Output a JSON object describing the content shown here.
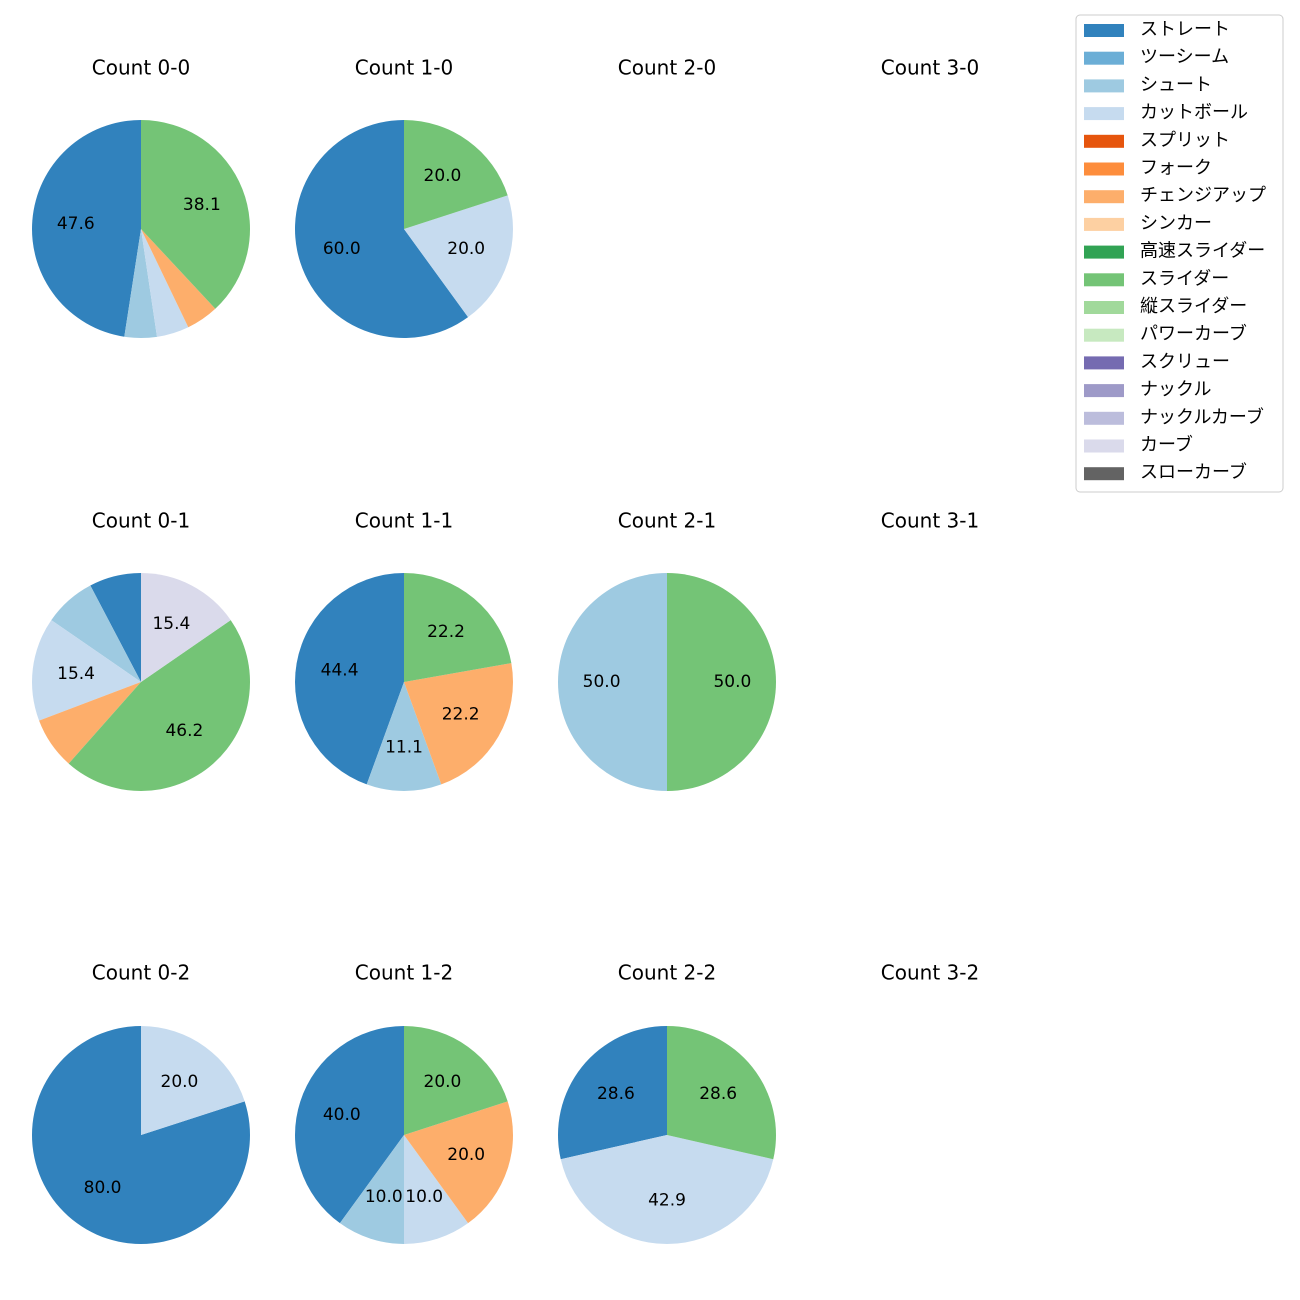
{
  "chart_data": {
    "type": "pie",
    "categories": [
      "ストレート",
      "ツーシーム",
      "シュート",
      "カットボール",
      "スプリット",
      "フォーク",
      "チェンジアップ",
      "シンカー",
      "高速スライダー",
      "スライダー",
      "縦スライダー",
      "パワーカーブ",
      "スクリュー",
      "ナックル",
      "ナックルカーブ",
      "カーブ",
      "スローカーブ"
    ],
    "colors": [
      "#3182bd",
      "#6baed6",
      "#9ecae1",
      "#c6dbef",
      "#e6550d",
      "#fd8d3c",
      "#fdae6b",
      "#fdd0a2",
      "#31a354",
      "#74c476",
      "#a1d99b",
      "#c7e9c0",
      "#756bb1",
      "#9e9ac8",
      "#bcbddc",
      "#dadaeb",
      "#636363"
    ],
    "legend_position": "top-right",
    "charts": [
      {
        "title": "Count 0-0",
        "slices": [
          {
            "cat": 0,
            "value": 47.6,
            "label": "47.6"
          },
          {
            "cat": 2,
            "value": 4.8,
            "label": ""
          },
          {
            "cat": 3,
            "value": 4.8,
            "label": ""
          },
          {
            "cat": 6,
            "value": 4.8,
            "label": ""
          },
          {
            "cat": 9,
            "value": 38.1,
            "label": "38.1"
          }
        ]
      },
      {
        "title": "Count 1-0",
        "slices": [
          {
            "cat": 0,
            "value": 60.0,
            "label": "60.0"
          },
          {
            "cat": 3,
            "value": 20.0,
            "label": "20.0"
          },
          {
            "cat": 9,
            "value": 20.0,
            "label": "20.0"
          }
        ]
      },
      {
        "title": "Count 2-0",
        "slices": []
      },
      {
        "title": "Count 3-0",
        "slices": []
      },
      {
        "title": "Count 0-1",
        "slices": [
          {
            "cat": 0,
            "value": 7.7,
            "label": ""
          },
          {
            "cat": 2,
            "value": 7.7,
            "label": ""
          },
          {
            "cat": 3,
            "value": 15.4,
            "label": "15.4"
          },
          {
            "cat": 6,
            "value": 7.7,
            "label": ""
          },
          {
            "cat": 9,
            "value": 46.2,
            "label": "46.2"
          },
          {
            "cat": 15,
            "value": 15.4,
            "label": "15.4"
          }
        ]
      },
      {
        "title": "Count 1-1",
        "slices": [
          {
            "cat": 0,
            "value": 44.4,
            "label": "44.4"
          },
          {
            "cat": 2,
            "value": 11.1,
            "label": "11.1"
          },
          {
            "cat": 6,
            "value": 22.2,
            "label": "22.2"
          },
          {
            "cat": 9,
            "value": 22.2,
            "label": "22.2"
          }
        ]
      },
      {
        "title": "Count 2-1",
        "slices": [
          {
            "cat": 2,
            "value": 50.0,
            "label": "50.0"
          },
          {
            "cat": 9,
            "value": 50.0,
            "label": "50.0"
          }
        ]
      },
      {
        "title": "Count 3-1",
        "slices": []
      },
      {
        "title": "Count 0-2",
        "slices": [
          {
            "cat": 0,
            "value": 80.0,
            "label": "80.0"
          },
          {
            "cat": 3,
            "value": 20.0,
            "label": "20.0"
          }
        ]
      },
      {
        "title": "Count 1-2",
        "slices": [
          {
            "cat": 0,
            "value": 40.0,
            "label": "40.0"
          },
          {
            "cat": 2,
            "value": 10.0,
            "label": "10.0"
          },
          {
            "cat": 3,
            "value": 10.0,
            "label": "10.0"
          },
          {
            "cat": 6,
            "value": 20.0,
            "label": "20.0"
          },
          {
            "cat": 9,
            "value": 20.0,
            "label": "20.0"
          }
        ]
      },
      {
        "title": "Count 2-2",
        "slices": [
          {
            "cat": 0,
            "value": 28.6,
            "label": "28.6"
          },
          {
            "cat": 3,
            "value": 42.9,
            "label": "42.9"
          },
          {
            "cat": 9,
            "value": 28.6,
            "label": "28.6"
          }
        ]
      },
      {
        "title": "Count 3-2",
        "slices": []
      }
    ]
  }
}
